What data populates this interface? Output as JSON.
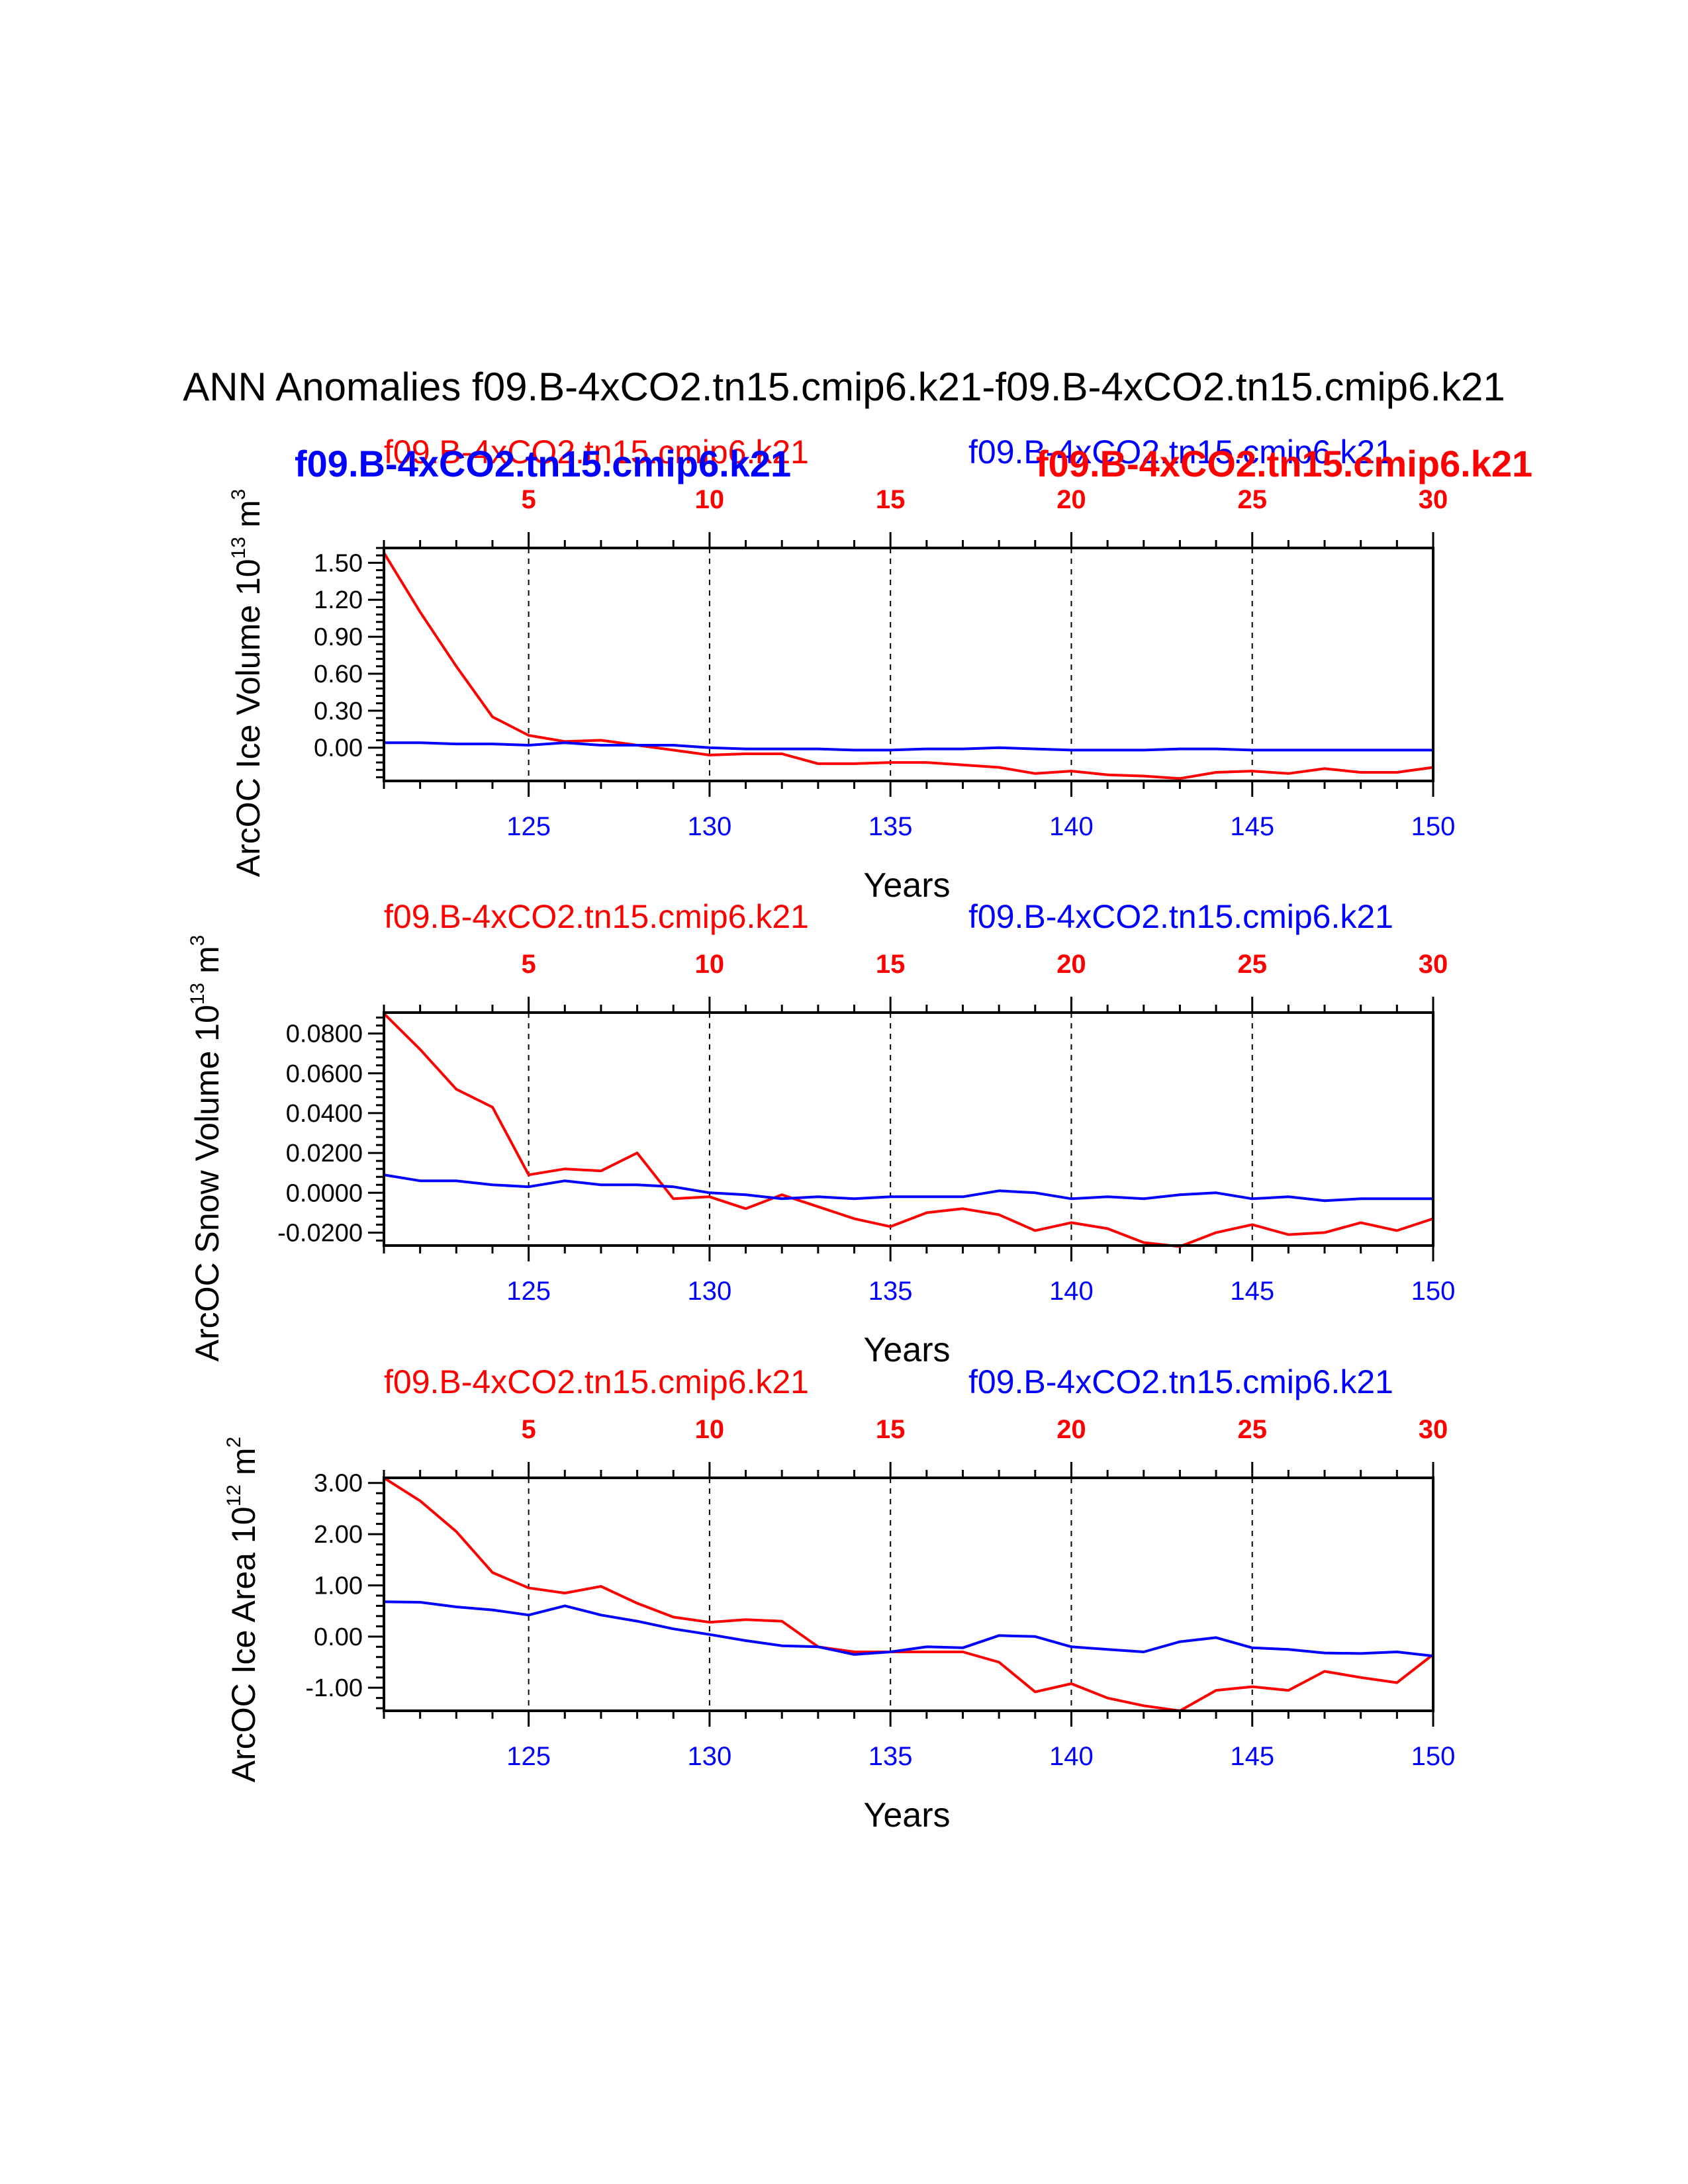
{
  "title": "ANN Anomalies f09.B-4xCO2.tn15.cmip6.k21-f09.B-4xCO2.tn15.cmip6.k21",
  "legend_overlay": {
    "left_bold": "f09.B-4xCO2.tn15.cmip6.k21",
    "right_bold": "f09.B-4xCO2.tn15.cmip6.k21"
  },
  "colors": {
    "case1": "#ff0000",
    "case2": "#0000ff",
    "axis": "#000000"
  },
  "chart_data": [
    {
      "type": "line",
      "case_labels": {
        "left": "f09.B-4xCO2.tn15.cmip6.k21",
        "right": "f09.B-4xCO2.tn15.cmip6.k21"
      },
      "ylabel": "ArcOC Ice Volume 10",
      "ylabel_sup": "13",
      "ylabel_unit": "m",
      "ylabel_unit_sup": "3",
      "xlabel": "Years",
      "xlim": [
        121,
        150
      ],
      "ylim": [
        -0.27,
        1.62
      ],
      "yticks": [
        1.5,
        1.2,
        0.9,
        0.6,
        0.3,
        0.0
      ],
      "ytick_labels": [
        "1.50",
        "1.20",
        "0.90",
        "0.60",
        "0.30",
        "0.00"
      ],
      "x_bottom_ticks": [
        125,
        130,
        135,
        140,
        145,
        150
      ],
      "x_bottom_labels": [
        "125",
        "130",
        "135",
        "140",
        "145",
        "150"
      ],
      "x_top_ticks": [
        125,
        130,
        135,
        140,
        145,
        150
      ],
      "x_top_labels": [
        "5",
        "10",
        "15",
        "20",
        "25",
        "30"
      ],
      "x": [
        121,
        122,
        123,
        124,
        125,
        126,
        127,
        128,
        129,
        130,
        131,
        132,
        133,
        134,
        135,
        136,
        137,
        138,
        139,
        140,
        141,
        142,
        143,
        144,
        145,
        146,
        147,
        148,
        149,
        150
      ],
      "series": [
        {
          "name": "f09.B-4xCO2.tn15.cmip6.k21",
          "color": "#ff0000",
          "values": [
            1.58,
            1.1,
            0.66,
            0.25,
            0.1,
            0.05,
            0.06,
            0.02,
            -0.02,
            -0.06,
            -0.05,
            -0.05,
            -0.13,
            -0.13,
            -0.12,
            -0.12,
            -0.14,
            -0.16,
            -0.21,
            -0.19,
            -0.22,
            -0.23,
            -0.25,
            -0.2,
            -0.19,
            -0.21,
            -0.17,
            -0.2,
            -0.2,
            -0.16
          ]
        },
        {
          "name": "f09.B-4xCO2.tn15.cmip6.k21",
          "color": "#0000ff",
          "values": [
            0.04,
            0.04,
            0.03,
            0.03,
            0.02,
            0.04,
            0.02,
            0.02,
            0.02,
            0.0,
            -0.01,
            -0.01,
            -0.01,
            -0.02,
            -0.02,
            -0.01,
            -0.01,
            0.0,
            -0.01,
            -0.02,
            -0.02,
            -0.02,
            -0.01,
            -0.01,
            -0.02,
            -0.02,
            -0.02,
            -0.02,
            -0.02,
            -0.02
          ]
        }
      ]
    },
    {
      "type": "line",
      "case_labels": {
        "left": "f09.B-4xCO2.tn15.cmip6.k21",
        "right": "f09.B-4xCO2.tn15.cmip6.k21"
      },
      "ylabel": "ArcOC Snow Volume 10",
      "ylabel_sup": "13",
      "ylabel_unit": "m",
      "ylabel_unit_sup": "3",
      "xlabel": "Years",
      "xlim": [
        121,
        150
      ],
      "ylim": [
        -0.0265,
        0.0905
      ],
      "yticks": [
        0.08,
        0.06,
        0.04,
        0.02,
        0.0,
        -0.02
      ],
      "ytick_labels": [
        "0.0800",
        "0.0600",
        "0.0400",
        "0.0200",
        "0.0000",
        "-0.0200"
      ],
      "x_bottom_ticks": [
        125,
        130,
        135,
        140,
        145,
        150
      ],
      "x_bottom_labels": [
        "125",
        "130",
        "135",
        "140",
        "145",
        "150"
      ],
      "x_top_ticks": [
        125,
        130,
        135,
        140,
        145,
        150
      ],
      "x_top_labels": [
        "5",
        "10",
        "15",
        "20",
        "25",
        "30"
      ],
      "x": [
        121,
        122,
        123,
        124,
        125,
        126,
        127,
        128,
        129,
        130,
        131,
        132,
        133,
        134,
        135,
        136,
        137,
        138,
        139,
        140,
        141,
        142,
        143,
        144,
        145,
        146,
        147,
        148,
        149,
        150
      ],
      "series": [
        {
          "name": "f09.B-4xCO2.tn15.cmip6.k21",
          "color": "#ff0000",
          "values": [
            0.09,
            0.072,
            0.052,
            0.043,
            0.009,
            0.012,
            0.011,
            0.02,
            -0.003,
            -0.002,
            -0.008,
            -0.001,
            -0.007,
            -0.013,
            -0.017,
            -0.01,
            -0.008,
            -0.011,
            -0.019,
            -0.015,
            -0.018,
            -0.025,
            -0.027,
            -0.02,
            -0.016,
            -0.021,
            -0.02,
            -0.015,
            -0.019,
            -0.013
          ]
        },
        {
          "name": "f09.B-4xCO2.tn15.cmip6.k21",
          "color": "#0000ff",
          "values": [
            0.009,
            0.006,
            0.006,
            0.004,
            0.003,
            0.006,
            0.004,
            0.004,
            0.003,
            0.0,
            -0.001,
            -0.003,
            -0.002,
            -0.003,
            -0.002,
            -0.002,
            -0.002,
            0.001,
            0.0,
            -0.003,
            -0.002,
            -0.003,
            -0.001,
            0.0,
            -0.003,
            -0.002,
            -0.004,
            -0.003,
            -0.003,
            -0.003
          ]
        }
      ]
    },
    {
      "type": "line",
      "case_labels": {
        "left": "f09.B-4xCO2.tn15.cmip6.k21",
        "right": "f09.B-4xCO2.tn15.cmip6.k21"
      },
      "ylabel": "ArcOC Ice Area 10",
      "ylabel_sup": "12",
      "ylabel_unit": "m",
      "ylabel_unit_sup": "2",
      "xlabel": "Years",
      "xlim": [
        121,
        150
      ],
      "ylim": [
        -1.45,
        3.1
      ],
      "yticks": [
        3.0,
        2.0,
        1.0,
        0.0,
        -1.0
      ],
      "ytick_labels": [
        "3.00",
        "2.00",
        "1.00",
        "0.00",
        "-1.00"
      ],
      "x_bottom_ticks": [
        125,
        130,
        135,
        140,
        145,
        150
      ],
      "x_bottom_labels": [
        "125",
        "130",
        "135",
        "140",
        "145",
        "150"
      ],
      "x_top_ticks": [
        125,
        130,
        135,
        140,
        145,
        150
      ],
      "x_top_labels": [
        "5",
        "10",
        "15",
        "20",
        "25",
        "30"
      ],
      "x": [
        121,
        122,
        123,
        124,
        125,
        126,
        127,
        128,
        129,
        130,
        131,
        132,
        133,
        134,
        135,
        136,
        137,
        138,
        139,
        140,
        141,
        142,
        143,
        144,
        145,
        146,
        147,
        148,
        149,
        150
      ],
      "series": [
        {
          "name": "f09.B-4xCO2.tn15.cmip6.k21",
          "color": "#ff0000",
          "values": [
            3.1,
            2.65,
            2.05,
            1.25,
            0.95,
            0.85,
            0.98,
            0.65,
            0.38,
            0.28,
            0.33,
            0.3,
            -0.2,
            -0.3,
            -0.3,
            -0.3,
            -0.3,
            -0.5,
            -1.08,
            -0.92,
            -1.2,
            -1.35,
            -1.45,
            -1.05,
            -0.98,
            -1.05,
            -0.68,
            -0.8,
            -0.9,
            -0.35
          ]
        },
        {
          "name": "f09.B-4xCO2.tn15.cmip6.k21",
          "color": "#0000ff",
          "values": [
            0.68,
            0.67,
            0.58,
            0.52,
            0.42,
            0.6,
            0.42,
            0.3,
            0.15,
            0.04,
            -0.08,
            -0.18,
            -0.2,
            -0.35,
            -0.3,
            -0.2,
            -0.22,
            0.02,
            0.0,
            -0.2,
            -0.25,
            -0.3,
            -0.1,
            -0.02,
            -0.22,
            -0.25,
            -0.32,
            -0.33,
            -0.3,
            -0.38
          ]
        }
      ]
    }
  ]
}
